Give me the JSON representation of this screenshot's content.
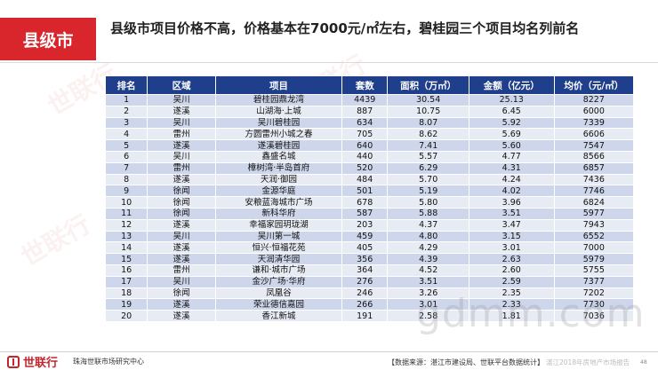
{
  "section_tag": "县级市",
  "title": "县级市项目价格不高，价格基本在7000元/㎡左右，碧桂园三个项目均名列前名",
  "table": {
    "headers": [
      "排名",
      "区域",
      "项目",
      "套数",
      "面积（万㎡）",
      "金额（亿元）",
      "均价（元/㎡）"
    ],
    "rows": [
      [
        "1",
        "吴川",
        "碧桂园鼎龙湾",
        "4439",
        "30.54",
        "25.13",
        "8227"
      ],
      [
        "2",
        "遂溪",
        "山湖海·上城",
        "887",
        "10.75",
        "6.45",
        "6000"
      ],
      [
        "3",
        "吴川",
        "吴川碧桂园",
        "634",
        "8.07",
        "5.92",
        "7339"
      ],
      [
        "4",
        "雷州",
        "方圆雷州小城之春",
        "705",
        "8.62",
        "5.69",
        "6606"
      ],
      [
        "5",
        "遂溪",
        "遂溪碧桂园",
        "640",
        "7.41",
        "5.60",
        "7547"
      ],
      [
        "6",
        "吴川",
        "鑫盛名城",
        "440",
        "5.57",
        "4.77",
        "8566"
      ],
      [
        "7",
        "雷州",
        "樟树湾·半岛首府",
        "520",
        "6.29",
        "4.31",
        "6857"
      ],
      [
        "8",
        "遂溪",
        "天润·御园",
        "484",
        "5.70",
        "4.24",
        "7436"
      ],
      [
        "9",
        "徐闻",
        "金源华庭",
        "501",
        "5.19",
        "4.02",
        "7746"
      ],
      [
        "10",
        "徐闻",
        "安粮蓝海城市广场",
        "678",
        "5.80",
        "3.96",
        "6824"
      ],
      [
        "11",
        "徐闻",
        "新科华府",
        "587",
        "5.88",
        "3.51",
        "5977"
      ],
      [
        "12",
        "遂溪",
        "幸福家园玥珑湖",
        "203",
        "4.37",
        "3.47",
        "7943"
      ],
      [
        "13",
        "吴川",
        "吴川第一城",
        "459",
        "4.80",
        "3.15",
        "6552"
      ],
      [
        "14",
        "遂溪",
        "恒兴·恒福花苑",
        "405",
        "4.29",
        "3.01",
        "7000"
      ],
      [
        "15",
        "遂溪",
        "天润清华园",
        "356",
        "4.39",
        "2.63",
        "5979"
      ],
      [
        "16",
        "雷州",
        "谦和·城市广场",
        "364",
        "4.52",
        "2.60",
        "5755"
      ],
      [
        "17",
        "吴川",
        "金沙广场·华府",
        "276",
        "3.51",
        "2.59",
        "7377"
      ],
      [
        "18",
        "徐闻",
        "凤凰谷",
        "246",
        "3.26",
        "2.35",
        "7202"
      ],
      [
        "19",
        "遂溪",
        "荣业德信嘉园",
        "266",
        "3.01",
        "2.33",
        "7730"
      ],
      [
        "20",
        "遂溪",
        "香江新城",
        "191",
        "2.58",
        "1.81",
        "7036"
      ]
    ]
  },
  "footer": {
    "logo_text": "世联行",
    "org": "珠海世联市场研究中心",
    "source": "【数据来源：湛江市建设局、世联平台数据统计】",
    "report": "湛江2018年房地产市场报告",
    "page": "48"
  },
  "watermarks": {
    "logo": "世联行",
    "site": "gdmm.com"
  }
}
